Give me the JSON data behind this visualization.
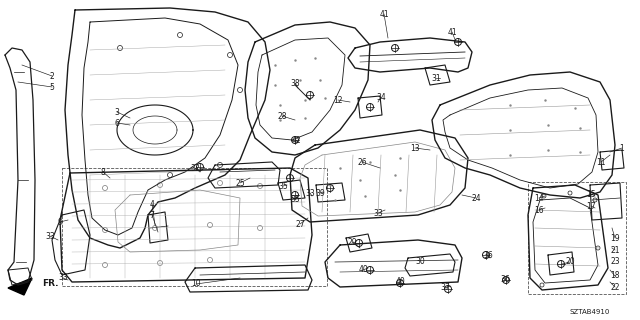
{
  "bg": "#ffffff",
  "lc": "#1a1a1a",
  "gray": "#888888",
  "diagram_code": "SZTAB4910",
  "labels": [
    [
      "1",
      622,
      148
    ],
    [
      "2",
      52,
      76
    ],
    [
      "5",
      52,
      87
    ],
    [
      "3",
      117,
      112
    ],
    [
      "6",
      117,
      123
    ],
    [
      "4",
      152,
      204
    ],
    [
      "7",
      152,
      215
    ],
    [
      "8",
      103,
      172
    ],
    [
      "9",
      60,
      222
    ],
    [
      "10",
      196,
      284
    ],
    [
      "11",
      601,
      162
    ],
    [
      "12",
      338,
      100
    ],
    [
      "13",
      415,
      148
    ],
    [
      "14",
      539,
      198
    ],
    [
      "15",
      591,
      194
    ],
    [
      "16",
      539,
      210
    ],
    [
      "17",
      591,
      206
    ],
    [
      "18",
      615,
      276
    ],
    [
      "19",
      615,
      238
    ],
    [
      "20",
      570,
      262
    ],
    [
      "21",
      615,
      250
    ],
    [
      "22",
      615,
      287
    ],
    [
      "23",
      615,
      262
    ],
    [
      "24",
      476,
      198
    ],
    [
      "25",
      240,
      183
    ],
    [
      "26",
      362,
      162
    ],
    [
      "27",
      300,
      224
    ],
    [
      "28",
      282,
      116
    ],
    [
      "29",
      352,
      242
    ],
    [
      "30",
      420,
      262
    ],
    [
      "31",
      436,
      78
    ],
    [
      "32",
      195,
      168
    ],
    [
      "33",
      50,
      236
    ],
    [
      "33",
      63,
      278
    ],
    [
      "33",
      310,
      193
    ],
    [
      "33",
      378,
      213
    ],
    [
      "34",
      381,
      97
    ],
    [
      "35",
      283,
      186
    ],
    [
      "35",
      295,
      199
    ],
    [
      "36",
      488,
      256
    ],
    [
      "36",
      505,
      280
    ],
    [
      "37",
      445,
      288
    ],
    [
      "38",
      295,
      83
    ],
    [
      "39",
      320,
      193
    ],
    [
      "40",
      363,
      270
    ],
    [
      "40",
      400,
      282
    ],
    [
      "41",
      384,
      14
    ],
    [
      "41",
      452,
      32
    ],
    [
      "42",
      296,
      140
    ]
  ]
}
